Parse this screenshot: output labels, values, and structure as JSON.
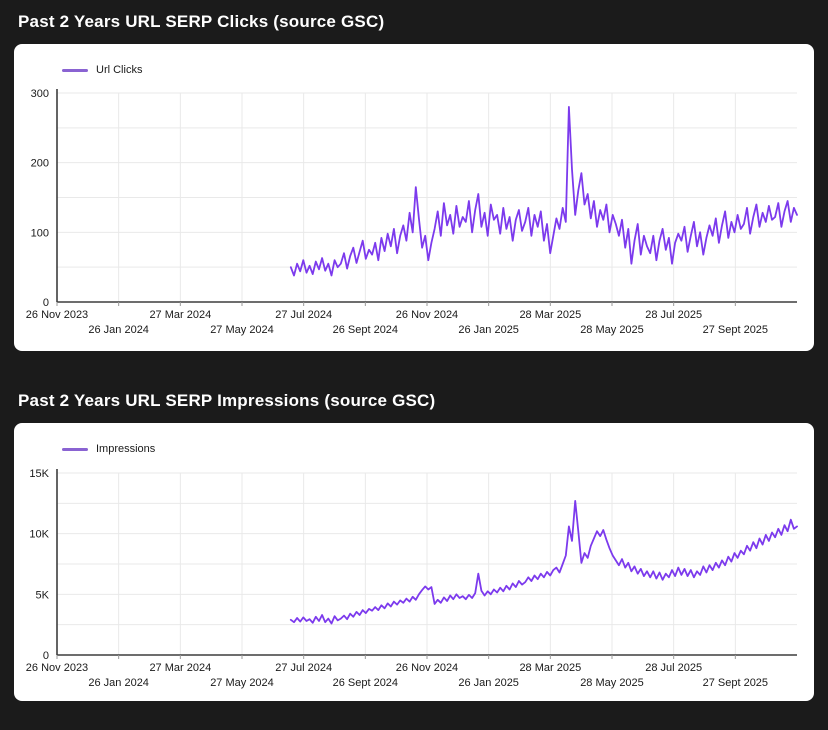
{
  "page": {
    "background": "#1b1b1b",
    "panel_background": "#ffffff"
  },
  "chart_data": [
    {
      "type": "line",
      "title": "Past 2 Years URL SERP Clicks (source GSC)",
      "legend": "Url Clicks",
      "line_color": "#7c3aed",
      "legend_color": "#8a63d2",
      "grid": true,
      "legend_position": "top-left",
      "ylim": [
        0,
        300
      ],
      "y_tick_values": [
        0,
        100,
        200,
        300
      ],
      "y_tick_labels": [
        "0",
        "100",
        "200",
        "300"
      ],
      "y_grid_step": 50,
      "x_tick_labels": [
        "26 Nov 2023",
        "26 Jan 2024",
        "27 Mar 2024",
        "27 May 2024",
        "27 Jul 2024",
        "26 Sept 2024",
        "26 Nov 2024",
        "26 Jan 2025",
        "28 Mar 2025",
        "28 May 2025",
        "28 Jul 2025",
        "27 Sept 2025"
      ],
      "data_start": "mid Jul 2024",
      "x_start_frac": 0.316,
      "values": [
        50,
        38,
        55,
        44,
        60,
        42,
        52,
        40,
        58,
        47,
        63,
        45,
        55,
        38,
        60,
        50,
        55,
        70,
        48,
        66,
        78,
        56,
        72,
        88,
        62,
        75,
        68,
        85,
        60,
        92,
        73,
        98,
        80,
        105,
        70,
        95,
        110,
        88,
        128,
        100,
        165,
        120,
        78,
        95,
        60,
        85,
        105,
        130,
        95,
        142,
        110,
        125,
        98,
        138,
        108,
        122,
        115,
        145,
        100,
        132,
        155,
        108,
        128,
        95,
        140,
        118,
        125,
        98,
        135,
        105,
        122,
        88,
        118,
        132,
        102,
        115,
        135,
        95,
        125,
        108,
        130,
        88,
        112,
        70,
        95,
        120,
        105,
        135,
        115,
        280,
        190,
        125,
        160,
        185,
        140,
        155,
        120,
        145,
        108,
        132,
        118,
        140,
        100,
        125,
        112,
        95,
        118,
        78,
        105,
        55,
        88,
        112,
        68,
        95,
        80,
        70,
        95,
        60,
        88,
        105,
        75,
        92,
        55,
        85,
        98,
        88,
        108,
        72,
        95,
        115,
        80,
        100,
        68,
        92,
        110,
        95,
        120,
        85,
        110,
        130,
        92,
        115,
        100,
        125,
        105,
        112,
        135,
        98,
        122,
        140,
        108,
        128,
        115,
        138,
        118,
        122,
        142,
        108,
        130,
        145,
        115,
        135,
        125
      ]
    },
    {
      "type": "line",
      "title": "Past 2 Years URL SERP Impressions (source GSC)",
      "legend": "Impressions",
      "line_color": "#7c3aed",
      "legend_color": "#8a63d2",
      "grid": true,
      "legend_position": "top-left",
      "ylim": [
        0,
        15000
      ],
      "y_tick_values": [
        0,
        5000,
        10000,
        15000
      ],
      "y_tick_labels": [
        "0",
        "5K",
        "10K",
        "15K"
      ],
      "y_grid_step": 2500,
      "x_tick_labels": [
        "26 Nov 2023",
        "26 Jan 2024",
        "27 Mar 2024",
        "27 May 2024",
        "27 Jul 2024",
        "26 Sept 2024",
        "26 Nov 2024",
        "26 Jan 2025",
        "28 Mar 2025",
        "28 May 2025",
        "28 Jul 2025",
        "27 Sept 2025"
      ],
      "data_start": "mid Jul 2024",
      "x_start_frac": 0.316,
      "values": [
        2900,
        2700,
        3050,
        2750,
        3100,
        2800,
        2950,
        2650,
        3150,
        2800,
        3300,
        2700,
        3000,
        2600,
        3200,
        2850,
        3000,
        3250,
        2950,
        3400,
        3150,
        3550,
        3300,
        3700,
        3450,
        3800,
        3650,
        3950,
        3700,
        4100,
        3850,
        4250,
        4000,
        4400,
        4150,
        4500,
        4300,
        4650,
        4400,
        4800,
        4550,
        5000,
        5350,
        5650,
        5400,
        5600,
        4200,
        4550,
        4300,
        4750,
        4450,
        4900,
        4600,
        5000,
        4700,
        4850,
        4600,
        4950,
        4700,
        5100,
        6700,
        5300,
        4900,
        5250,
        5000,
        5400,
        5150,
        5550,
        5250,
        5700,
        5400,
        5900,
        5600,
        6100,
        5800,
        6000,
        6400,
        6100,
        6550,
        6250,
        6700,
        6400,
        6850,
        6550,
        7000,
        7200,
        6800,
        7500,
        8200,
        10600,
        9400,
        12700,
        10200,
        7600,
        8400,
        8000,
        9000,
        9600,
        10200,
        9800,
        10300,
        9500,
        8800,
        8200,
        7800,
        7400,
        7900,
        7200,
        7600,
        6900,
        7300,
        6700,
        7100,
        6500,
        6900,
        6400,
        6900,
        6300,
        6800,
        6200,
        6700,
        6400,
        7000,
        6500,
        7200,
        6600,
        7100,
        6500,
        7000,
        6400,
        6900,
        6600,
        7300,
        6800,
        7400,
        7000,
        7600,
        7200,
        7800,
        7400,
        8100,
        7700,
        8400,
        8000,
        8600,
        8300,
        9000,
        8600,
        9300,
        8800,
        9600,
        9100,
        9900,
        9400,
        10100,
        9700,
        10400,
        9900,
        10700,
        10200,
        11150,
        10400,
        10600
      ]
    }
  ],
  "style": {
    "gridline_color": "#e9e9e9",
    "axis_color": "#3d3d3d",
    "tick_color": "#9a9a9a",
    "tick_label_color": "#1a1a1a"
  }
}
